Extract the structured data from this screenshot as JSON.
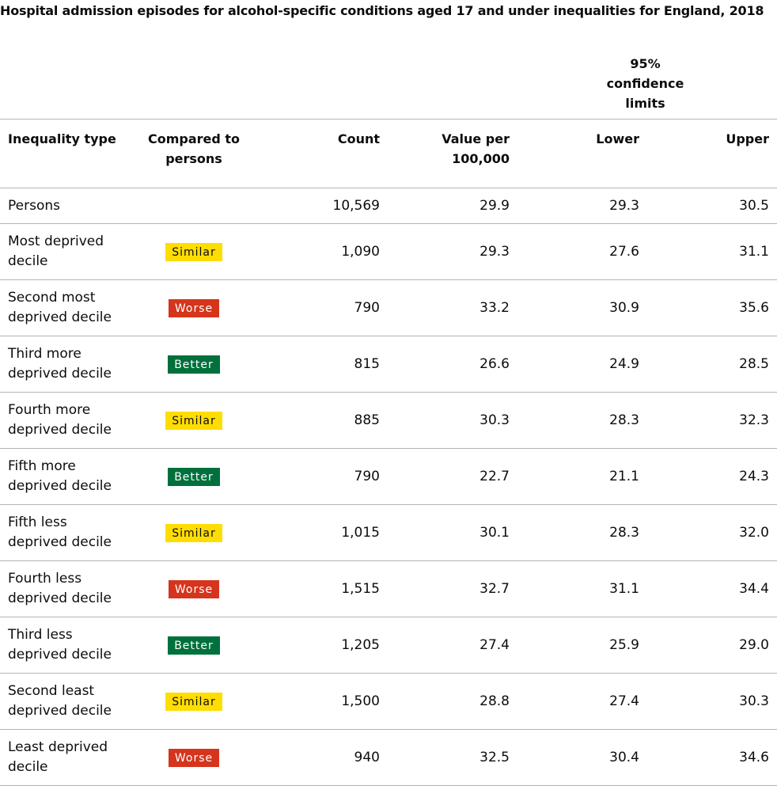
{
  "caption": "Hospital admission episodes for alcohol-specific conditions aged 17 and under inequalities for England, 2018",
  "header": {
    "ci_group": "95% confidence limits",
    "inequality_type": "Inequality type",
    "compared_to": "Compared to persons",
    "count": "Count",
    "value": "Value per 100,000",
    "lower": "Lower",
    "upper": "Upper"
  },
  "rows": [
    {
      "label": "Persons",
      "compare": "",
      "count": "10,569",
      "value": "29.9",
      "lower": "29.3",
      "upper": "30.5"
    },
    {
      "label": "Most deprived decile",
      "compare": "Similar",
      "count": "1,090",
      "value": "29.3",
      "lower": "27.6",
      "upper": "31.1"
    },
    {
      "label": "Second most deprived decile",
      "compare": "Worse",
      "count": "790",
      "value": "33.2",
      "lower": "30.9",
      "upper": "35.6"
    },
    {
      "label": "Third more deprived decile",
      "compare": "Better",
      "count": "815",
      "value": "26.6",
      "lower": "24.9",
      "upper": "28.5"
    },
    {
      "label": "Fourth more deprived decile",
      "compare": "Similar",
      "count": "885",
      "value": "30.3",
      "lower": "28.3",
      "upper": "32.3"
    },
    {
      "label": "Fifth more deprived decile",
      "compare": "Better",
      "count": "790",
      "value": "22.7",
      "lower": "21.1",
      "upper": "24.3"
    },
    {
      "label": "Fifth less deprived decile",
      "compare": "Similar",
      "count": "1,015",
      "value": "30.1",
      "lower": "28.3",
      "upper": "32.0"
    },
    {
      "label": "Fourth less deprived decile",
      "compare": "Worse",
      "count": "1,515",
      "value": "32.7",
      "lower": "31.1",
      "upper": "34.4"
    },
    {
      "label": "Third less deprived decile",
      "compare": "Better",
      "count": "1,205",
      "value": "27.4",
      "lower": "25.9",
      "upper": "29.0"
    },
    {
      "label": "Second least deprived decile",
      "compare": "Similar",
      "count": "1,500",
      "value": "28.8",
      "lower": "27.4",
      "upper": "30.3"
    },
    {
      "label": "Least deprived decile",
      "compare": "Worse",
      "count": "940",
      "value": "32.5",
      "lower": "30.4",
      "upper": "34.6"
    }
  ],
  "colors": {
    "similar": "#ffdd00",
    "worse": "#d4351c",
    "better": "#00703c"
  }
}
